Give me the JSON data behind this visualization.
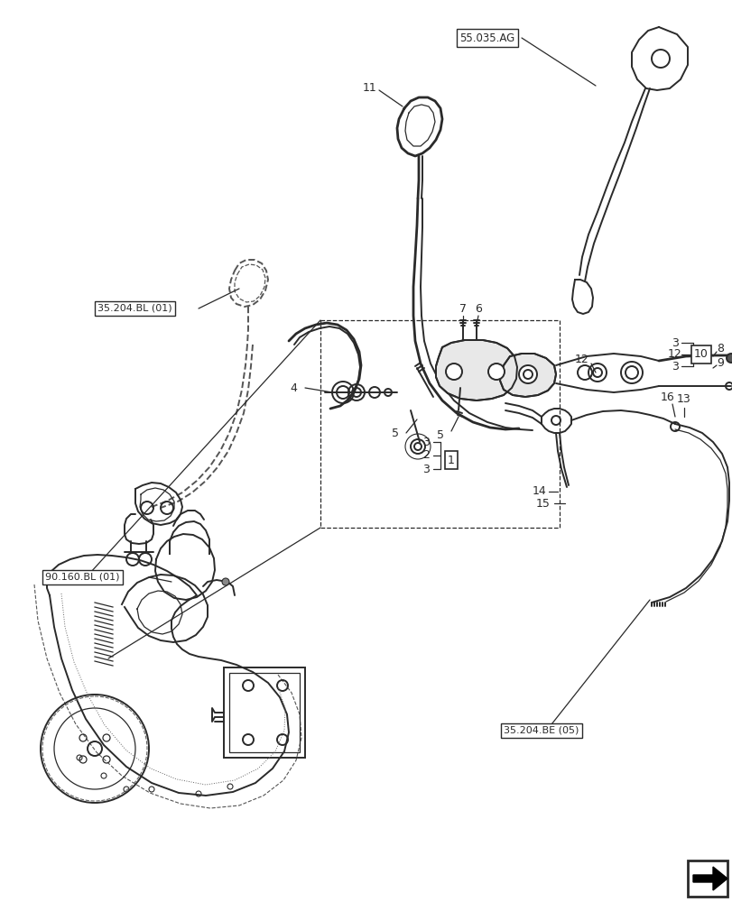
{
  "bg_color": "#ffffff",
  "line_color": "#2a2a2a",
  "figsize": [
    8.12,
    10.0
  ],
  "dpi": 100,
  "labels": {
    "ag": "55.035.AG",
    "bl01": "35.204.BL (01)",
    "bl01_90": "90.160.BL (01)",
    "be05": "35.204.BE (05)"
  }
}
